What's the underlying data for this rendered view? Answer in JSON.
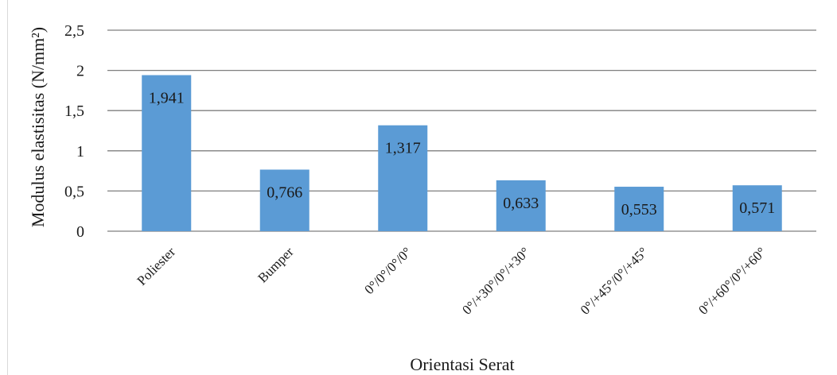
{
  "chart_data": {
    "type": "bar",
    "title": "",
    "xlabel": "Orientasi Serat",
    "ylabel": "Modulus elastisitas (N/mm²)",
    "categories": [
      "Poliester",
      "Bumper",
      "0°/0°/0°/0°",
      "0°/+30°/0°/+30°",
      "0°/+45°/0°/+45°",
      "0°/+60°/0°/+60°"
    ],
    "values": [
      1.941,
      0.766,
      1.317,
      0.633,
      0.553,
      0.571
    ],
    "data_labels": [
      "1,941",
      "0,766",
      "1,317",
      "0,633",
      "0,553",
      "0,571"
    ],
    "yticks": [
      0,
      0.5,
      1,
      1.5,
      2,
      2.5
    ],
    "ytick_labels": [
      "0",
      "0,5",
      "1",
      "1,5",
      "2",
      "2,5"
    ],
    "ylim": [
      0,
      2.5
    ],
    "grid": true,
    "legend": "none",
    "colors": {
      "bar": "#5b9bd5",
      "grid": "#7f7f7f",
      "text": "#1a1a1a"
    }
  }
}
